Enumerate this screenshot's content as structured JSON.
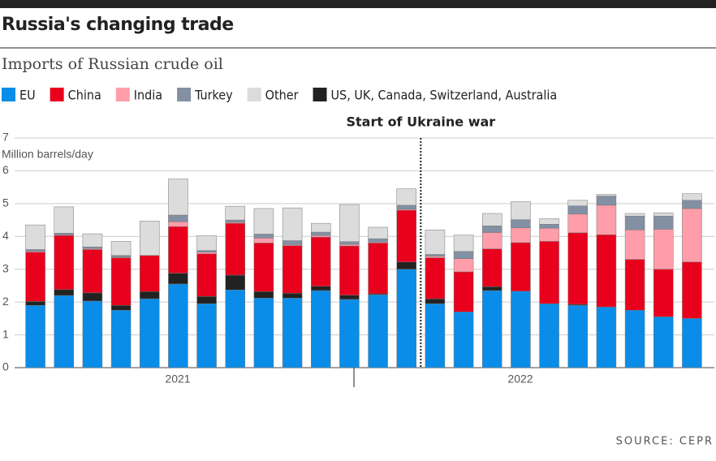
{
  "chart_data": {
    "type": "stacked_bar",
    "title": "Russia's changing trade",
    "subtitle": "Imports of Russian crude oil",
    "y_label": "Million barrels/day",
    "source": "SOURCE: CEPR",
    "annotation": {
      "text": "Start of Ukraine war",
      "x": 13.5
    },
    "categories": [
      null,
      null,
      null,
      null,
      null,
      null,
      null,
      null,
      null,
      null,
      null,
      null,
      null,
      null,
      null,
      null,
      null,
      null,
      null,
      null,
      null,
      null,
      null,
      null
    ],
    "year_labels": [
      "2021",
      "2022"
    ],
    "stack_order": [
      0,
      5,
      1,
      2,
      3,
      4
    ],
    "series": [
      {
        "name": "EU",
        "color": "#0a8de8",
        "values": [
          1.9,
          2.2,
          2.03,
          1.75,
          2.1,
          2.55,
          1.95,
          2.37,
          2.12,
          2.12,
          2.35,
          2.08,
          2.22,
          3.0,
          1.95,
          1.7,
          2.35,
          2.33,
          1.95,
          1.9,
          1.85,
          1.75,
          1.55,
          1.5
        ]
      },
      {
        "name": "China",
        "color": "#e8001c",
        "values": [
          1.5,
          1.65,
          1.32,
          1.45,
          1.1,
          1.42,
          1.3,
          1.58,
          1.48,
          1.45,
          1.5,
          1.5,
          1.55,
          1.58,
          1.25,
          1.22,
          1.15,
          1.48,
          1.9,
          2.18,
          2.2,
          1.55,
          1.45,
          1.72
        ]
      },
      {
        "name": "India",
        "color": "#ff9eaa",
        "values": [
          0.03,
          0.02,
          0.03,
          0.02,
          0,
          0.15,
          0.05,
          0.03,
          0.15,
          0.03,
          0.05,
          0.05,
          0.03,
          0.03,
          0.05,
          0.4,
          0.5,
          0.45,
          0.4,
          0.57,
          0.9,
          0.9,
          1.22,
          1.63
        ]
      },
      {
        "name": "Turkey",
        "color": "#8390a4",
        "values": [
          0.05,
          0.05,
          0.05,
          0.05,
          0,
          0.2,
          0.05,
          0.07,
          0.12,
          0.12,
          0.1,
          0.08,
          0.1,
          0.12,
          0.05,
          0.22,
          0.2,
          0.25,
          0.12,
          0.25,
          0.28,
          0.42,
          0.4,
          0.25
        ]
      },
      {
        "name": "Other",
        "color": "#dcdcdc",
        "values": [
          0.75,
          0.8,
          0.4,
          0.43,
          1.05,
          1.1,
          0.45,
          0.42,
          0.78,
          1.0,
          0.27,
          1.13,
          0.35,
          0.5,
          0.75,
          0.5,
          0.38,
          0.55,
          0.17,
          0.17,
          0.05,
          0.08,
          0.1,
          0.2
        ]
      },
      {
        "name": "US, UK, Canada, Switzerland, Australia",
        "color": "#222222",
        "values": [
          0.12,
          0.18,
          0.25,
          0.15,
          0.22,
          0.33,
          0.22,
          0.45,
          0.2,
          0.15,
          0.13,
          0.13,
          0.03,
          0.22,
          0.15,
          0,
          0.12,
          0,
          0,
          0.03,
          0,
          0,
          0,
          0
        ]
      }
    ],
    "ylim": [
      0,
      7
    ],
    "yticks": [
      0,
      1,
      2,
      3,
      4,
      5,
      6,
      7
    ],
    "grid": true
  }
}
